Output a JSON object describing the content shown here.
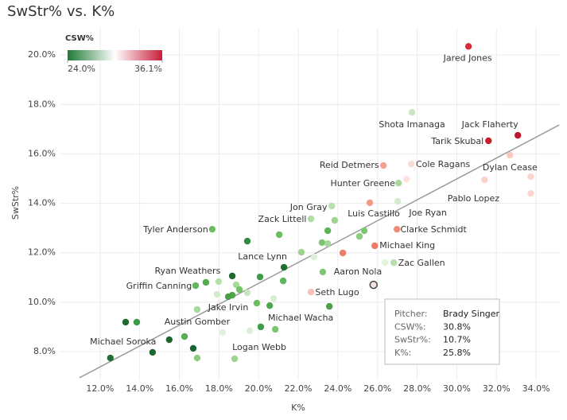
{
  "chart_data": {
    "type": "scatter",
    "title": "SwStr% vs. K%",
    "x_label": "K%",
    "y_label": "SwStr%",
    "xlim": [
      10,
      35.2
    ],
    "ylim": [
      6.84,
      21.1
    ],
    "xticks": [
      {
        "value": 12,
        "label": "12.0%"
      },
      {
        "value": 14,
        "label": "14.0%"
      },
      {
        "value": 16,
        "label": "16.0%"
      },
      {
        "value": 18,
        "label": "18.0%"
      },
      {
        "value": 20,
        "label": "20.0%"
      },
      {
        "value": 22,
        "label": "22.0%"
      },
      {
        "value": 24,
        "label": "24.0%"
      },
      {
        "value": 26,
        "label": "26.0%"
      },
      {
        "value": 28,
        "label": "28.0%"
      },
      {
        "value": 30,
        "label": "30.0%"
      },
      {
        "value": 32,
        "label": "32.0%"
      },
      {
        "value": 34,
        "label": "34.0%"
      }
    ],
    "yticks": [
      {
        "value": 8,
        "label": "8.0%"
      },
      {
        "value": 10,
        "label": "10.0%"
      },
      {
        "value": 12,
        "label": "12.0%"
      },
      {
        "value": 14,
        "label": "14.0%"
      },
      {
        "value": 16,
        "label": "16.0%"
      },
      {
        "value": 18,
        "label": "18.0%"
      },
      {
        "value": 20,
        "label": "20.0%"
      }
    ],
    "grid": true,
    "x": [
      30.59,
      27.74,
      33.08,
      31.6,
      32.68,
      33.73,
      31.4,
      26.3,
      27.7,
      27.46,
      27.06,
      33.73,
      23.69,
      27.02,
      25.61,
      22.64,
      23.84,
      17.66,
      26.98,
      25.33,
      23.49,
      25.09,
      21.04,
      19.43,
      23.2,
      23.49,
      25.86,
      22.16,
      24.25,
      22.8,
      21.28,
      26.38,
      26.82,
      23.24,
      18.67,
      20.07,
      21.24,
      17.34,
      16.82,
      17.98,
      18.87,
      19.03,
      18.67,
      18.47,
      17.9,
      25.8,
      22.64,
      19.43,
      20.76,
      19.91,
      20.56,
      23.57,
      16.9,
      20.84,
      20.11,
      18.18,
      19.55,
      13.29,
      13.85,
      16.26,
      12.52,
      14.65,
      15.49,
      16.7,
      16.9,
      18.79
    ],
    "values": [
      20.35,
      17.68,
      16.75,
      16.53,
      15.95,
      15.08,
      14.95,
      15.53,
      15.59,
      14.98,
      14.82,
      14.4,
      13.89,
      14.08,
      14.02,
      13.37,
      13.31,
      12.95,
      12.95,
      12.89,
      12.89,
      12.66,
      12.73,
      12.47,
      12.41,
      12.37,
      12.28,
      12.02,
      11.99,
      11.83,
      11.41,
      11.6,
      11.6,
      11.22,
      11.06,
      11.02,
      10.86,
      10.8,
      10.67,
      10.83,
      10.7,
      10.51,
      10.28,
      10.22,
      10.32,
      10.7,
      10.41,
      10.38,
      10.15,
      9.96,
      9.86,
      9.83,
      9.7,
      8.9,
      9.0,
      8.77,
      8.84,
      9.19,
      9.19,
      8.61,
      7.74,
      7.97,
      8.48,
      8.13,
      7.74,
      7.71
    ],
    "colors": [
      "#d42a3a",
      "#c7e6c0",
      "#c0182f",
      "#c8202f",
      "#f7c9c0",
      "#f9d6cf",
      "#f9d2ca",
      "#f4a090",
      "#fadcd4",
      "#fbe3dc",
      "#a8d89c",
      "#f9d6cf",
      "#b8e0ae",
      "#d4ecce",
      "#f29a87",
      "#b0dca6",
      "#9fd493",
      "#6cbd62",
      "#ef8a78",
      "#7ec772",
      "#5cb257",
      "#8bcc7e",
      "#6cbd62",
      "#2e8b3e",
      "#7dc670",
      "#a5d69a",
      "#ee7a6a",
      "#9ed392",
      "#ef7d6c",
      "#dcefd7",
      "#1f6e33",
      "#e4f2e0",
      "#b5dfab",
      "#7fc674",
      "#1d6a30",
      "#3f9c48",
      "#5fb559",
      "#52ab50",
      "#62b65b",
      "#b5dfab",
      "#a8d99c",
      "#73c169",
      "#4da74d",
      "#4a9f49",
      "#d1ecca",
      "#f3e1dd",
      "#f6c0b8",
      "#c7e6c0",
      "#d8eed2",
      "#6cbd62",
      "#4da74d",
      "#4f9f4c",
      "#a8d99c",
      "#7cc570",
      "#3f9c48",
      "#e1f1dc",
      "#dcefd7",
      "#1e6a31",
      "#3d9a48",
      "#56af53",
      "#1f6e33",
      "#1c6a30",
      "#1b6530",
      "#1a652f",
      "#8bcc7e",
      "#9fd493"
    ],
    "labels": [
      "Jared Jones",
      "Shota Imanaga",
      "Jack Flaherty",
      "Tarik Skubal",
      null,
      "Dylan Cease",
      null,
      "Reid Detmers",
      "Cole Ragans",
      null,
      "Hunter Greene",
      "Pablo Lopez",
      "Jon Gray",
      "Joe Ryan",
      "Luis Castillo",
      "Zack Littell",
      null,
      "Tyler Anderson",
      "Clarke Schmidt",
      null,
      null,
      null,
      null,
      null,
      null,
      null,
      "Michael King",
      null,
      null,
      null,
      "Lance Lynn",
      null,
      "Zac Gallen",
      "Aaron Nola",
      null,
      null,
      null,
      "Ryan Weathers",
      "Griffin Canning",
      null,
      null,
      null,
      null,
      "Jake Irvin",
      null,
      null,
      "Seth Lugo",
      null,
      null,
      null,
      null,
      null,
      "Austin Gomber",
      "Michael Wacha",
      null,
      null,
      null,
      null,
      null,
      null,
      "Michael Soroka",
      null,
      null,
      null,
      null,
      "Logan Webb"
    ],
    "selected_index": 45,
    "trendline": {
      "x": [
        10.96,
        35.17
      ],
      "y": [
        6.94,
        17.17
      ],
      "color": "#9a9a9a"
    },
    "colorbar": {
      "title": "CSW%",
      "colors": [
        "#1e7a35",
        "#ffffff",
        "#c81e3a"
      ],
      "ticks": [
        {
          "value": 24.0,
          "label": "24.0%"
        },
        {
          "value": 36.1,
          "label": "36.1%"
        }
      ]
    },
    "tooltip": {
      "rows": [
        {
          "label": "Pitcher:",
          "value": "Brady Singer"
        },
        {
          "label": "CSW%:",
          "value": "30.8%"
        },
        {
          "label": "SwStr%:",
          "value": "10.7%"
        },
        {
          "label": "K%:",
          "value": "25.8%"
        }
      ]
    }
  }
}
